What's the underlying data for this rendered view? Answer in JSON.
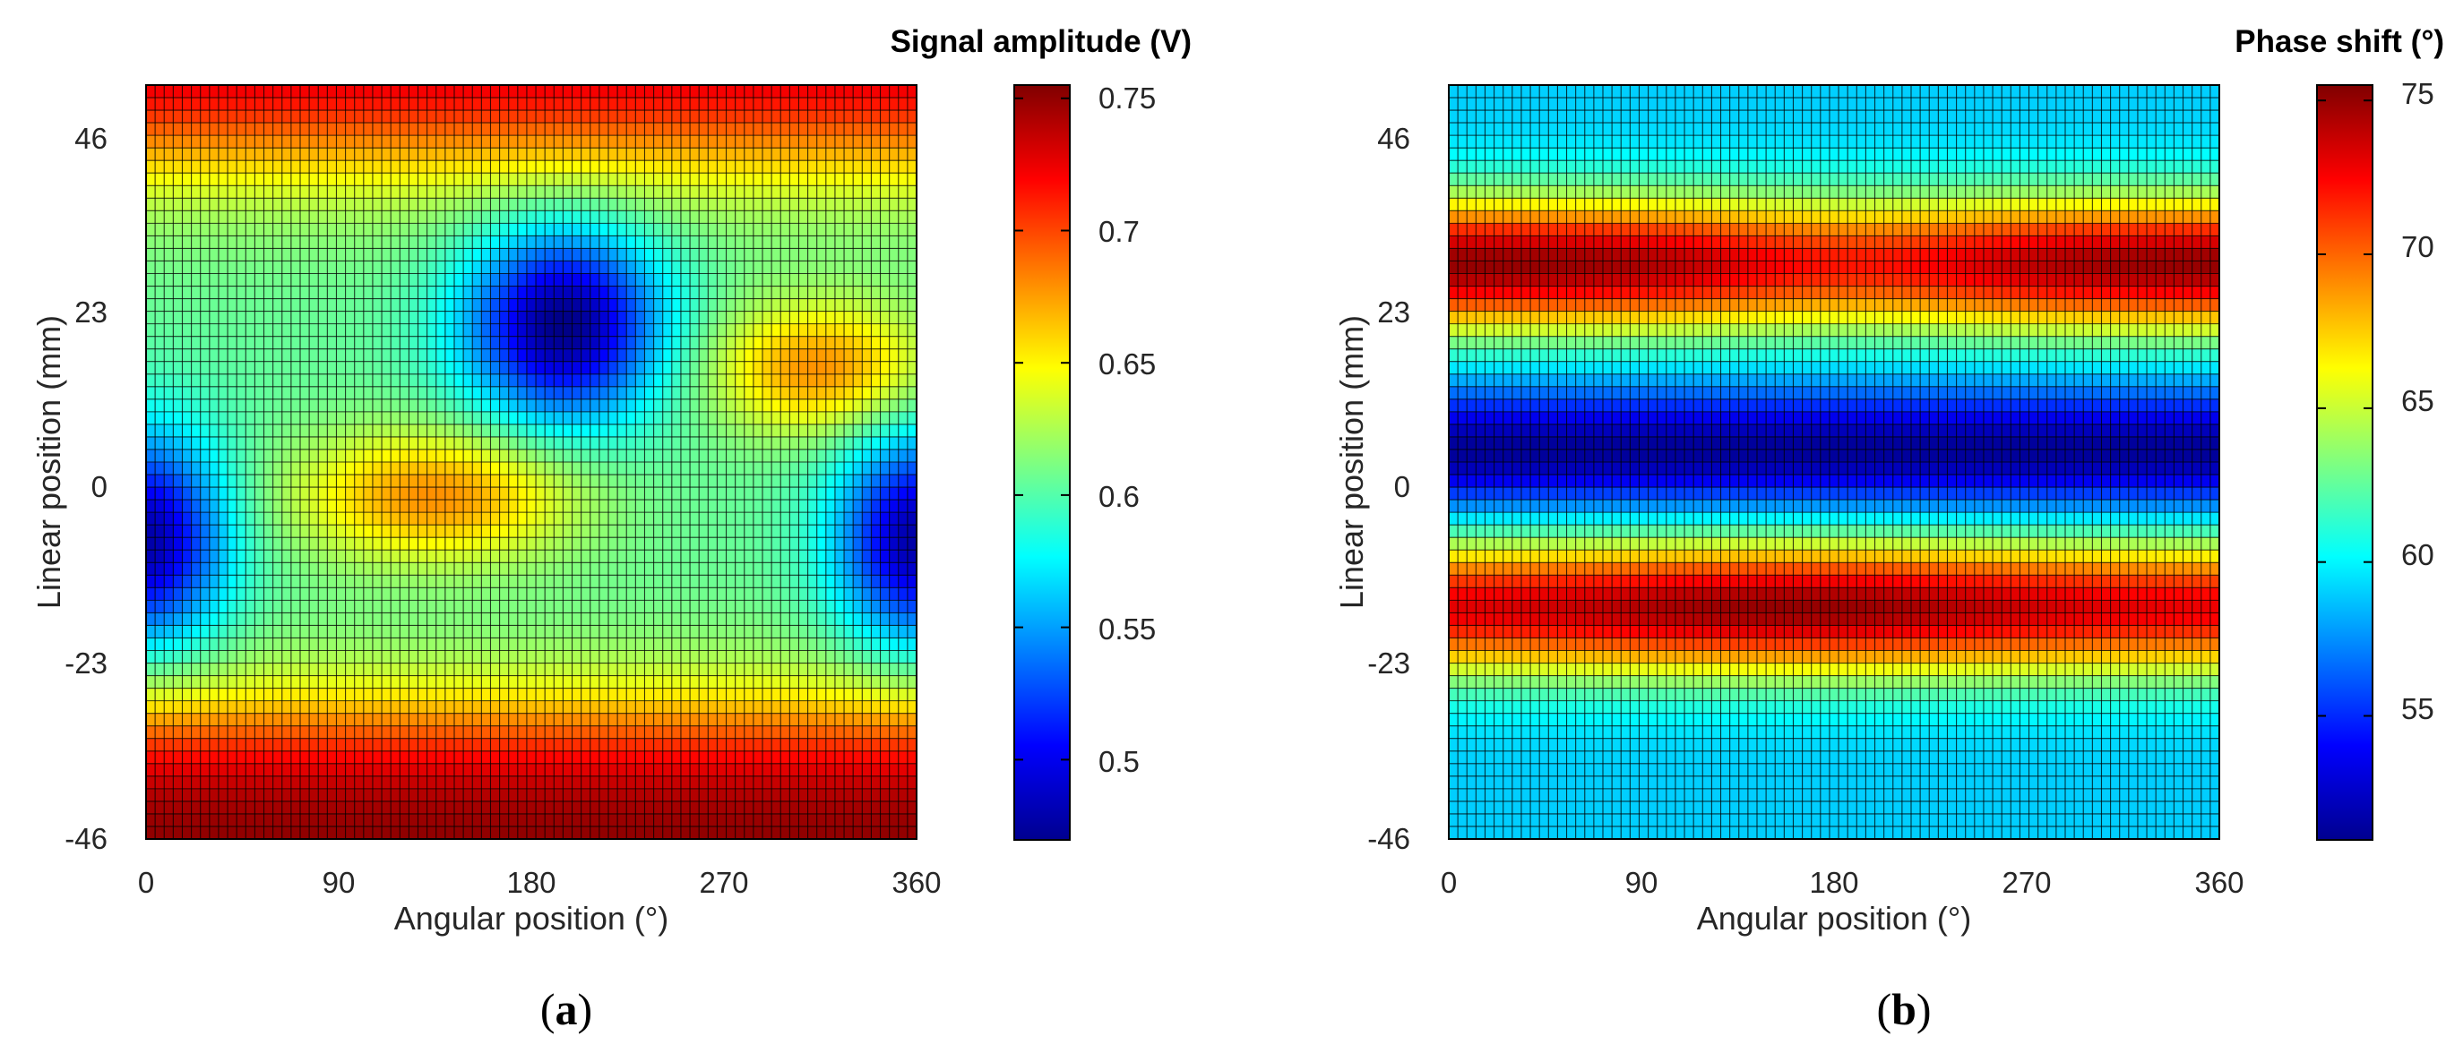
{
  "chart_data": [
    {
      "type": "heatmap",
      "panel_label": "a",
      "title": "Signal amplitude (V)",
      "xlabel": "Angular position (°)",
      "ylabel": "Linear position (mm)",
      "xlim": [
        0,
        360
      ],
      "ylim": [
        -46,
        55
      ],
      "xticks": [
        "0",
        "90",
        "180",
        "270",
        "360"
      ],
      "xtick_values": [
        0,
        90,
        180,
        270,
        360
      ],
      "yticks": [
        "-46",
        "-23",
        "0",
        "23",
        "46"
      ],
      "ytick_values": [
        -46,
        -23,
        0,
        23,
        46
      ],
      "colorbar": {
        "range": [
          0.47,
          0.755
        ],
        "ticks": [
          "0.5",
          "0.55",
          "0.6",
          "0.65",
          "0.7",
          "0.75"
        ],
        "tick_values": [
          0.5,
          0.55,
          0.6,
          0.65,
          0.7,
          0.75
        ],
        "colormap": "jet"
      },
      "grid": {
        "nx": 85,
        "ny": 60
      },
      "field": {
        "edge_value": 0.605,
        "edge_gradient": "steep",
        "top_value": 0.75,
        "bottom_value": 0.755,
        "features": [
          {
            "kind": "low",
            "x": 195,
            "y": 23,
            "value": 0.47
          },
          {
            "kind": "low",
            "x": 0,
            "y": -6,
            "value": 0.48
          },
          {
            "kind": "low",
            "x": 360,
            "y": -6,
            "value": 0.48
          },
          {
            "kind": "high",
            "x": 135,
            "y": 0,
            "value": 0.68
          },
          {
            "kind": "high",
            "x": 315,
            "y": 17,
            "value": 0.68
          }
        ]
      }
    },
    {
      "type": "heatmap",
      "panel_label": "b",
      "title": "Phase shift (°)",
      "xlabel": "Angular position (°)",
      "ylabel": "Linear position (mm)",
      "xlim": [
        0,
        360
      ],
      "ylim": [
        -46,
        55
      ],
      "xticks": [
        "0",
        "90",
        "180",
        "270",
        "360"
      ],
      "xtick_values": [
        0,
        90,
        180,
        270,
        360
      ],
      "yticks": [
        "-46",
        "-23",
        "0",
        "23",
        "46"
      ],
      "ytick_values": [
        -46,
        -23,
        0,
        23,
        46
      ],
      "colorbar": {
        "range": [
          51,
          75.5
        ],
        "ticks": [
          "55",
          "60",
          "65",
          "70",
          "75"
        ],
        "tick_values": [
          55,
          60,
          65,
          70,
          75
        ],
        "colormap": "jet"
      },
      "grid": {
        "nx": 85,
        "ny": 60
      },
      "field": {
        "baseline": 59,
        "bands": [
          {
            "kind": "high",
            "y": 31,
            "value": 75,
            "dip_at_x": 190,
            "dip_value": 72
          },
          {
            "kind": "low",
            "y": 6,
            "value": 51.5
          },
          {
            "kind": "high",
            "y": -15,
            "value": 75,
            "peak_at_x": 160
          }
        ]
      }
    }
  ],
  "captions": [
    "a",
    "b"
  ]
}
